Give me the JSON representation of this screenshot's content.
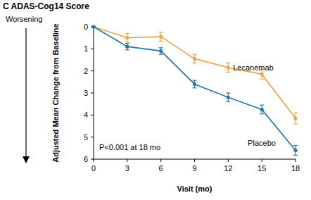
{
  "chart_data": {
    "type": "line",
    "title": "C ADAS-Cog14 Score",
    "y_label": "Adjusted Mean Change from Baseline",
    "x_label": "Visit (mo)",
    "annotations": [
      "Worsening",
      "P<0.001 at 18 mo"
    ],
    "x": [
      0,
      3,
      6,
      9,
      12,
      15,
      18
    ],
    "xlim": [
      0,
      18
    ],
    "xticks": [
      0,
      3,
      6,
      9,
      12,
      15,
      18
    ],
    "ylim": [
      6,
      0
    ],
    "yticks": [
      0,
      1,
      2,
      3,
      4,
      5,
      6
    ],
    "grid": false,
    "series": [
      {
        "name": "Lecanemab",
        "color": "#eea84a",
        "marker": "circle",
        "values": [
          0,
          0.5,
          0.45,
          1.45,
          1.85,
          2.15,
          4.15
        ],
        "errors": [
          0,
          0.2,
          0.2,
          0.2,
          0.22,
          0.22,
          0.25
        ]
      },
      {
        "name": "Placebo",
        "color": "#2679ad",
        "marker": "circle",
        "values": [
          0,
          0.9,
          1.1,
          2.6,
          3.2,
          3.75,
          5.6
        ],
        "errors": [
          0,
          0.15,
          0.15,
          0.17,
          0.2,
          0.2,
          0.22
        ]
      }
    ]
  }
}
